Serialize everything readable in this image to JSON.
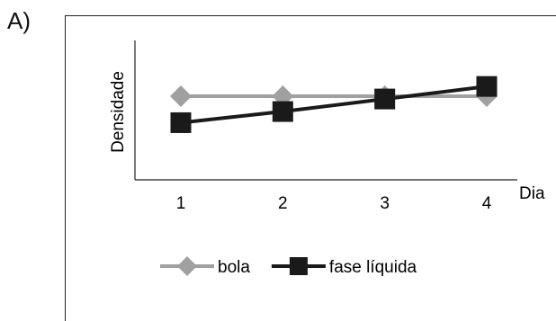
{
  "panel_label": "A)",
  "chart_data": {
    "type": "line",
    "xlabel": "Dia",
    "ylabel": "Densidade",
    "x": [
      1,
      2,
      3,
      4
    ],
    "categories": [
      "1",
      "2",
      "3",
      "4"
    ],
    "ylim": [
      0,
      10
    ],
    "grid": false,
    "show_y_ticks": false,
    "legend_placement": "bottom",
    "series": [
      {
        "name": "bola",
        "values": [
          6.0,
          6.0,
          6.0,
          6.0
        ],
        "color": "#a0a0a0",
        "marker": "diamond"
      },
      {
        "name": "fase líquida",
        "values": [
          4.1,
          4.9,
          5.8,
          6.7
        ],
        "color": "#1a1a1a",
        "marker": "square"
      }
    ]
  }
}
